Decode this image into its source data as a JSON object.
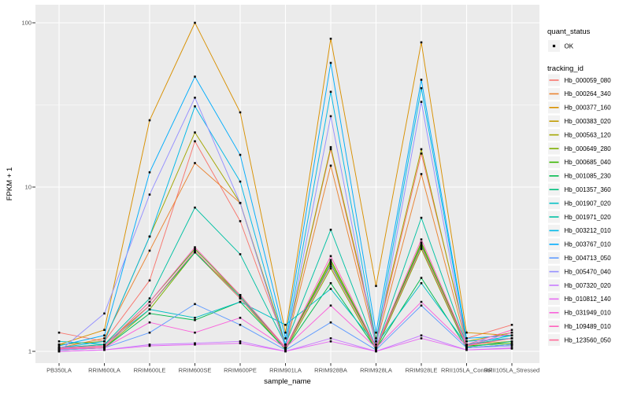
{
  "figure": {
    "bg": "#FFFFFF",
    "panel_bg": "#EBEBEB",
    "grid_color": "#FFFFFF",
    "tick_color": "#333333",
    "tick_label_color": "#4D4D4D",
    "point_color": "#0A0A0A",
    "legend_key_bg": "#F2F2F2"
  },
  "axes": {
    "x_title": "sample_name",
    "y_title": "FPKM + 1",
    "y_tick_labels": [
      "1",
      "10",
      "100"
    ]
  },
  "legend": {
    "quant_status": {
      "title": "quant_status",
      "items": [
        {
          "label": "OK",
          "marker": "point-icon"
        }
      ]
    },
    "tracking_id": {
      "title": "tracking_id"
    }
  },
  "chart_data": {
    "type": "line",
    "title": "",
    "xlabel": "sample_name",
    "ylabel": "FPKM + 1",
    "y_scale": "log10",
    "ylim": [
      1,
      110
    ],
    "y_major_ticks": [
      1,
      10,
      100
    ],
    "grid": true,
    "legend_position": "right",
    "point_shape": "small-black-square",
    "categories": [
      "PB350LA",
      "RRIM600LA",
      "RRIM600LE",
      "RRIM600SE",
      "RRIM600PE",
      "RRIM901LA",
      "RRIM928BA",
      "RRIM928LA",
      "RRIM928LE",
      "RRII105LA_Control",
      "RRII105LA_Stressed"
    ],
    "series": [
      {
        "name": "Hb_000059_080",
        "color": "#F8766D",
        "values": [
          1.3,
          1.15,
          2.7,
          19,
          6.2,
          1.1,
          17,
          1.15,
          16,
          1.2,
          1.45
        ]
      },
      {
        "name": "Hb_000264_340",
        "color": "#EA8331",
        "values": [
          1.05,
          1.2,
          4.1,
          14,
          8.0,
          1.05,
          13.5,
          1.1,
          12,
          1.1,
          1.2
        ]
      },
      {
        "name": "Hb_000377_160",
        "color": "#D89000",
        "values": [
          1.1,
          1.35,
          25.5,
          100,
          28.5,
          1.3,
          80,
          2.5,
          76,
          1.3,
          1.25
        ]
      },
      {
        "name": "Hb_000383_020",
        "color": "#C09B00",
        "values": [
          1.05,
          1.1,
          1.9,
          4.0,
          2.2,
          1.05,
          3.5,
          1.05,
          4.5,
          1.1,
          1.15
        ]
      },
      {
        "name": "Hb_000563_120",
        "color": "#A3A500",
        "values": [
          1.1,
          1.15,
          5.0,
          21.5,
          8.0,
          1.1,
          17.5,
          1.2,
          17,
          1.15,
          1.3
        ]
      },
      {
        "name": "Hb_000649_280",
        "color": "#7CAE00",
        "values": [
          1.02,
          1.05,
          1.8,
          4.0,
          2.1,
          1.02,
          3.2,
          1.02,
          4.2,
          1.05,
          1.1
        ]
      },
      {
        "name": "Hb_000685_040",
        "color": "#39B600",
        "values": [
          1.05,
          1.08,
          2.0,
          4.2,
          2.2,
          1.05,
          3.6,
          1.05,
          4.6,
          1.08,
          1.12
        ]
      },
      {
        "name": "Hb_001085_230",
        "color": "#00BB4E",
        "values": [
          1.02,
          1.05,
          1.7,
          1.55,
          2.0,
          1.03,
          2.6,
          1.03,
          2.8,
          1.05,
          1.1
        ]
      },
      {
        "name": "Hb_001357_360",
        "color": "#00BF7D",
        "values": [
          1.03,
          1.06,
          1.9,
          4.0,
          2.15,
          1.04,
          3.4,
          1.04,
          4.4,
          1.06,
          1.15
        ]
      },
      {
        "name": "Hb_001907_020",
        "color": "#00BFC4",
        "values": [
          1.15,
          1.1,
          1.8,
          1.6,
          2.0,
          1.45,
          2.4,
          1.1,
          2.6,
          1.1,
          1.25
        ]
      },
      {
        "name": "Hb_001971_020",
        "color": "#00C1A3",
        "values": [
          1.05,
          1.1,
          2.1,
          7.5,
          3.9,
          1.1,
          5.5,
          1.05,
          6.5,
          1.1,
          1.2
        ]
      },
      {
        "name": "Hb_003212_010",
        "color": "#00B8E7",
        "values": [
          1.05,
          1.15,
          5.0,
          31,
          10.8,
          1.1,
          38,
          1.15,
          40,
          1.15,
          1.2
        ]
      },
      {
        "name": "Hb_003767_010",
        "color": "#00ACFC",
        "values": [
          1.08,
          1.25,
          12.3,
          47,
          15.7,
          1.2,
          57,
          1.3,
          45,
          1.2,
          1.25
        ]
      },
      {
        "name": "Hb_004713_050",
        "color": "#619CFF",
        "values": [
          1.02,
          1.05,
          1.3,
          1.94,
          1.45,
          1.02,
          1.5,
          1.02,
          1.9,
          1.05,
          1.1
        ]
      },
      {
        "name": "Hb_005470_040",
        "color": "#9590FF",
        "values": [
          1.0,
          1.7,
          9.0,
          35,
          8.0,
          1.05,
          27,
          1.05,
          33,
          1.05,
          1.08
        ]
      },
      {
        "name": "Hb_007320_020",
        "color": "#C77CFF",
        "values": [
          1.0,
          1.02,
          1.1,
          1.12,
          1.15,
          1.0,
          1.2,
          1.0,
          1.25,
          1.02,
          1.05
        ]
      },
      {
        "name": "Hb_010812_140",
        "color": "#E76BF3",
        "values": [
          1.0,
          1.02,
          1.08,
          1.1,
          1.12,
          1.0,
          1.15,
          1.0,
          1.2,
          1.02,
          1.04
        ]
      },
      {
        "name": "Hb_031949_010",
        "color": "#FA62DB",
        "values": [
          1.03,
          1.05,
          1.5,
          1.3,
          1.6,
          1.05,
          1.9,
          1.05,
          2.0,
          1.08,
          1.3
        ]
      },
      {
        "name": "Hb_109489_010",
        "color": "#FF62BC",
        "values": [
          1.05,
          1.08,
          2.0,
          4.3,
          2.2,
          1.06,
          3.8,
          1.06,
          4.8,
          1.1,
          1.35
        ]
      },
      {
        "name": "Hb_123560_050",
        "color": "#FF6A98",
        "values": [
          1.04,
          1.06,
          1.9,
          4.1,
          2.1,
          1.05,
          3.3,
          1.05,
          4.3,
          1.08,
          1.2
        ]
      }
    ]
  }
}
